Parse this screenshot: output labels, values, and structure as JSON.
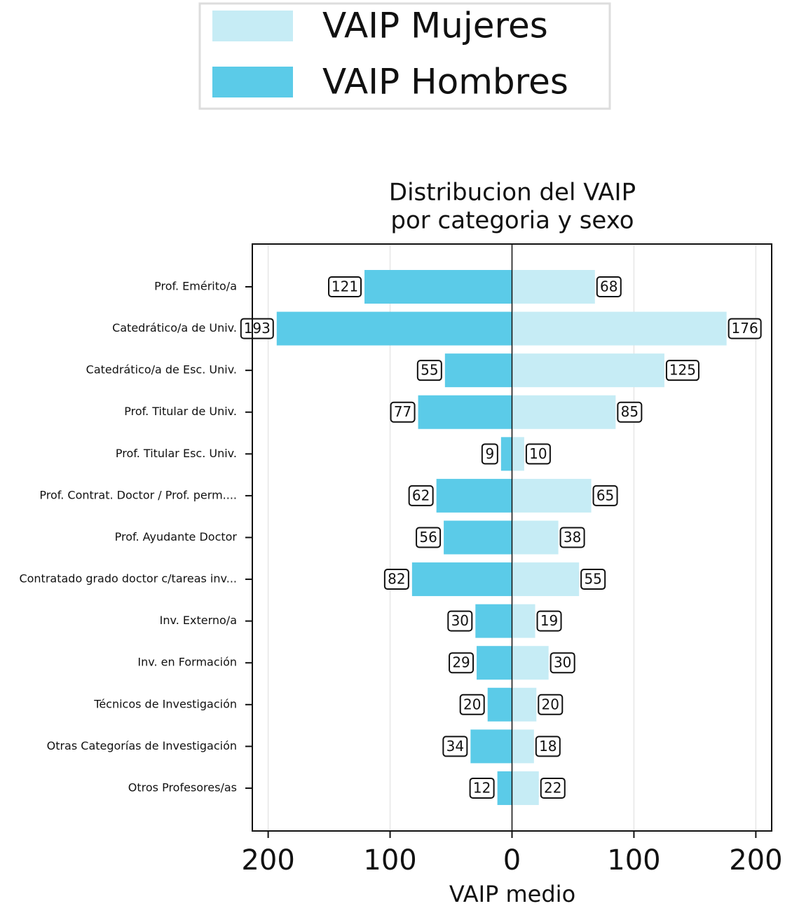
{
  "chart_data": {
    "type": "butterfly-bar",
    "title": [
      "Distribucion del VAIP",
      "por categoria y sexo"
    ],
    "xlabel": "VAIP medio",
    "categories": [
      "Prof. Emérito/a",
      "Catedrático/a de Univ.",
      "Catedrático/a de Esc. Univ.",
      "Prof. Titular de Univ.",
      "Prof. Titular Esc. Univ.",
      "Prof. Contrat. Doctor  / Prof. perm....",
      "Prof. Ayudante Doctor",
      "Contratado grado doctor c/tareas inv...",
      "Inv. Externo/a",
      "Inv. en Formación",
      "Técnicos de Investigación",
      "Otras Categorías de Investigación",
      "Otros Profesores/as"
    ],
    "series": [
      {
        "name": "VAIP Mujeres",
        "color": "#c6ecf5",
        "values": [
          68,
          176,
          125,
          85,
          10,
          65,
          38,
          55,
          19,
          30,
          20,
          18,
          22
        ]
      },
      {
        "name": "VAIP Hombres",
        "color": "#5bcbe8",
        "values": [
          121,
          193,
          55,
          77,
          9,
          62,
          56,
          82,
          30,
          29,
          20,
          34,
          12
        ]
      }
    ],
    "xlim": [
      -213,
      213
    ],
    "xticks": [
      {
        "value": -200,
        "label": "200"
      },
      {
        "value": -100,
        "label": "100"
      },
      0,
      100,
      200
    ],
    "grid": true
  }
}
